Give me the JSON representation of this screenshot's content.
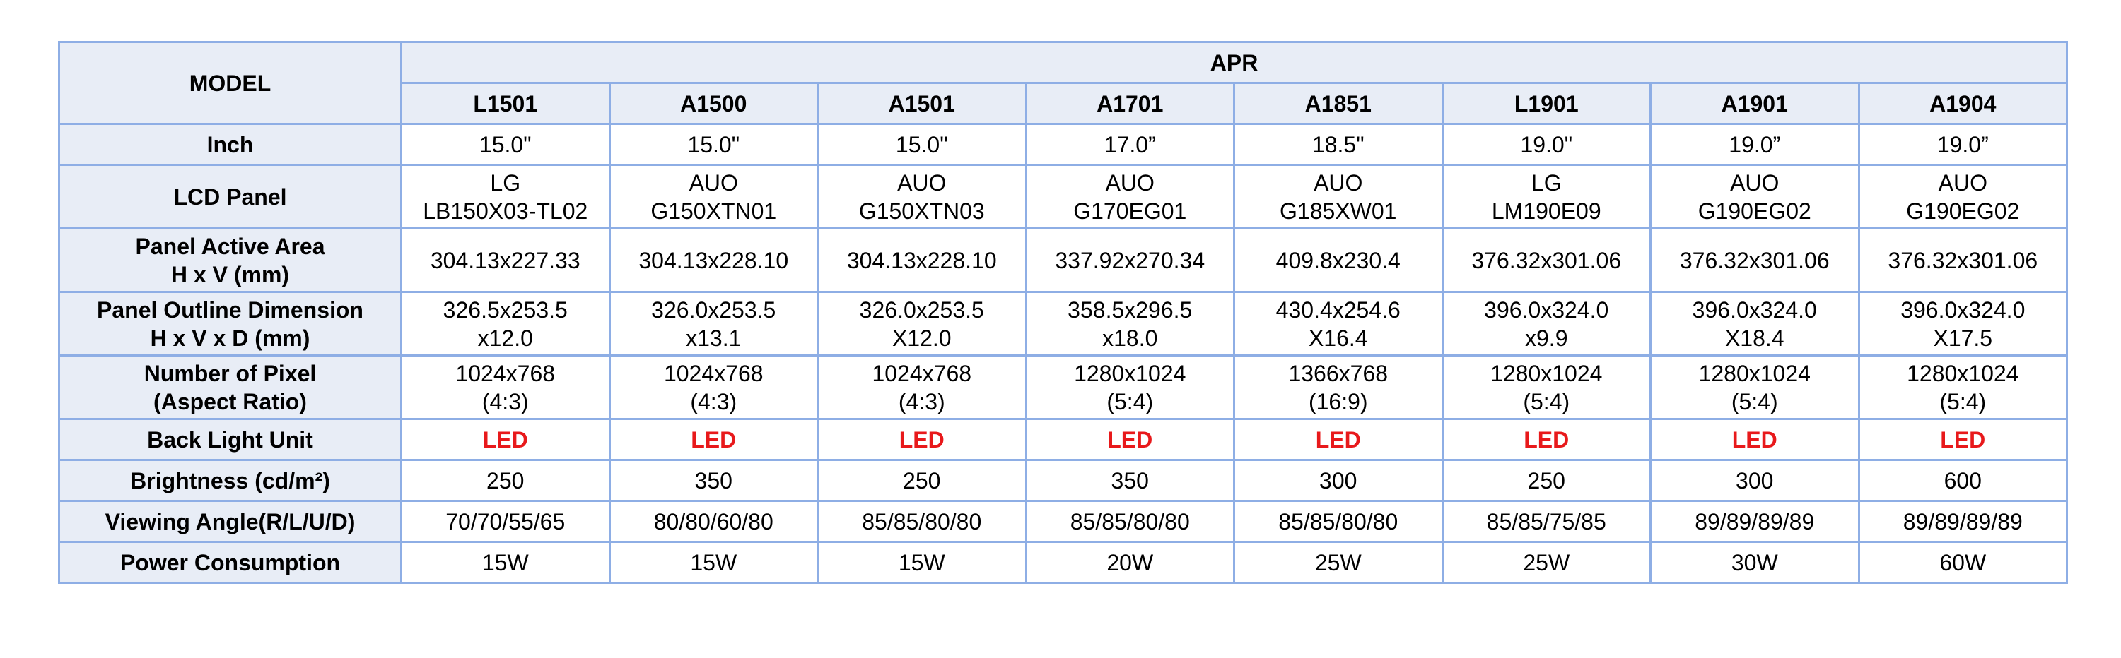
{
  "header": {
    "model_label": "MODEL",
    "group_label": "APR"
  },
  "models": [
    "L1501",
    "A1500",
    "A1501",
    "A1701",
    "A1851",
    "L1901",
    "A1901",
    "A1904"
  ],
  "rows": {
    "inch": {
      "label": "Inch",
      "values": [
        "15.0\"",
        "15.0\"",
        "15.0\"",
        "17.0”",
        "18.5\"",
        "19.0\"",
        "19.0”",
        "19.0”"
      ]
    },
    "lcd_panel": {
      "label": "LCD Panel",
      "values": [
        [
          "LG",
          "LB150X03-TL02"
        ],
        [
          "AUO",
          "G150XTN01"
        ],
        [
          "AUO",
          "G150XTN03"
        ],
        [
          "AUO",
          "G170EG01"
        ],
        [
          "AUO",
          "G185XW01"
        ],
        [
          "LG",
          "LM190E09"
        ],
        [
          "AUO",
          "G190EG02"
        ],
        [
          "AUO",
          "G190EG02"
        ]
      ]
    },
    "active_area": {
      "label": [
        "Panel Active Area",
        "H x V (mm)"
      ],
      "values": [
        "304.13x227.33",
        "304.13x228.10",
        "304.13x228.10",
        "337.92x270.34",
        "409.8x230.4",
        "376.32x301.06",
        "376.32x301.06",
        "376.32x301.06"
      ]
    },
    "outline": {
      "label": [
        "Panel Outline Dimension",
        "H x V x D (mm)"
      ],
      "values": [
        [
          "326.5x253.5",
          "x12.0"
        ],
        [
          "326.0x253.5",
          "x13.1"
        ],
        [
          "326.0x253.5",
          "X12.0"
        ],
        [
          "358.5x296.5",
          "x18.0"
        ],
        [
          "430.4x254.6",
          "X16.4"
        ],
        [
          "396.0x324.0",
          "x9.9"
        ],
        [
          "396.0x324.0",
          "X18.4"
        ],
        [
          "396.0x324.0",
          "X17.5"
        ]
      ]
    },
    "pixel": {
      "label": [
        "Number of Pixel",
        "(Aspect Ratio)"
      ],
      "values": [
        [
          "1024x768",
          "(4:3)"
        ],
        [
          "1024x768",
          "(4:3)"
        ],
        [
          "1024x768",
          "(4:3)"
        ],
        [
          "1280x1024",
          "(5:4)"
        ],
        [
          "1366x768",
          "(16:9)"
        ],
        [
          "1280x1024",
          "(5:4)"
        ],
        [
          "1280x1024",
          "(5:4)"
        ],
        [
          "1280x1024",
          "(5:4)"
        ]
      ]
    },
    "backlight": {
      "label": "Back Light Unit",
      "values": [
        "LED",
        "LED",
        "LED",
        "LED",
        "LED",
        "LED",
        "LED",
        "LED"
      ]
    },
    "brightness": {
      "label": "Brightness (cd/m²)",
      "values": [
        "250",
        "350",
        "250",
        "350",
        "300",
        "250",
        "300",
        "600"
      ]
    },
    "viewing": {
      "label": "Viewing Angle(R/L/U/D)",
      "values": [
        "70/70/55/65",
        "80/80/60/80",
        "85/85/80/80",
        "85/85/80/80",
        "85/85/80/80",
        "85/85/75/85",
        "89/89/89/89",
        "89/89/89/89"
      ]
    },
    "power": {
      "label": "Power Consumption",
      "values": [
        "15W",
        "15W",
        "15W",
        "20W",
        "25W",
        "25W",
        "30W",
        "60W"
      ]
    }
  },
  "colors": {
    "border": "#8eaee5",
    "header_bg": "#e8edf6",
    "led_text": "#e8191b"
  }
}
